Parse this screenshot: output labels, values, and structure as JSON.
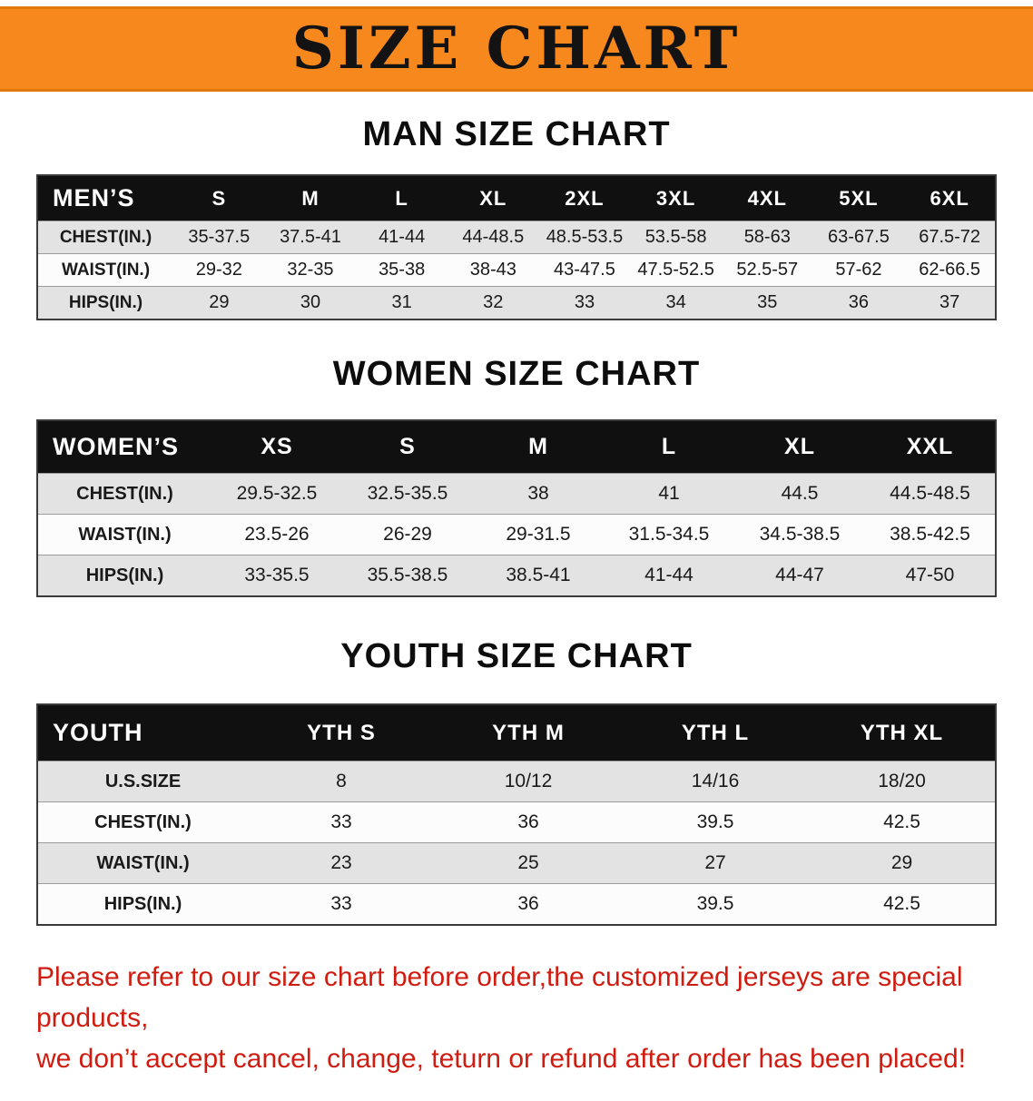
{
  "banner": {
    "title": "SIZE CHART",
    "bg_color": "#f6881d",
    "text_color": "#131313"
  },
  "colors": {
    "table_header_bg": "#101010",
    "table_header_text": "#ffffff",
    "row_stripe": "#e3e3e3",
    "disclaimer_red": "#d01c10"
  },
  "men": {
    "heading": "MAN SIZE CHART",
    "table": {
      "header": [
        "MEN’S",
        "S",
        "M",
        "L",
        "XL",
        "2XL",
        "3XL",
        "4XL",
        "5XL",
        "6XL"
      ],
      "rows": [
        {
          "label": "CHEST(IN.)",
          "values": [
            "35-37.5",
            "37.5-41",
            "41-44",
            "44-48.5",
            "48.5-53.5",
            "53.5-58",
            "58-63",
            "63-67.5",
            "67.5-72"
          ]
        },
        {
          "label": "WAIST(IN.)",
          "values": [
            "29-32",
            "32-35",
            "35-38",
            "38-43",
            "43-47.5",
            "47.5-52.5",
            "52.5-57",
            "57-62",
            "62-66.5"
          ]
        },
        {
          "label": "HIPS(IN.)",
          "values": [
            "29",
            "30",
            "31",
            "32",
            "33",
            "34",
            "35",
            "36",
            "37"
          ]
        }
      ]
    }
  },
  "women": {
    "heading": "WOMEN SIZE CHART",
    "table": {
      "header": [
        "WOMEN’S",
        "XS",
        "S",
        "M",
        "L",
        "XL",
        "XXL"
      ],
      "rows": [
        {
          "label": "CHEST(IN.)",
          "values": [
            "29.5-32.5",
            "32.5-35.5",
            "38",
            "41",
            "44.5",
            "44.5-48.5"
          ]
        },
        {
          "label": "WAIST(IN.)",
          "values": [
            "23.5-26",
            "26-29",
            "29-31.5",
            "31.5-34.5",
            "34.5-38.5",
            "38.5-42.5"
          ]
        },
        {
          "label": "HIPS(IN.)",
          "values": [
            "33-35.5",
            "35.5-38.5",
            "38.5-41",
            "41-44",
            "44-47",
            "47-50"
          ]
        }
      ]
    }
  },
  "youth": {
    "heading": "YOUTH SIZE CHART",
    "table": {
      "header": [
        "YOUTH",
        "YTH S",
        "YTH M",
        "YTH L",
        "YTH XL"
      ],
      "rows": [
        {
          "label": "U.S.SIZE",
          "values": [
            "8",
            "10/12",
            "14/16",
            "18/20"
          ]
        },
        {
          "label": "CHEST(IN.)",
          "values": [
            "33",
            "36",
            "39.5",
            "42.5"
          ]
        },
        {
          "label": "WAIST(IN.)",
          "values": [
            "23",
            "25",
            "27",
            "29"
          ]
        },
        {
          "label": "HIPS(IN.)",
          "values": [
            "33",
            "36",
            "39.5",
            "42.5"
          ]
        }
      ]
    }
  },
  "footer": {
    "line1": "Please refer to our size chart before order,the customized jerseys are special products,",
    "line2": "we don’t accept cancel, change, teturn or refund after order has been placed!"
  }
}
